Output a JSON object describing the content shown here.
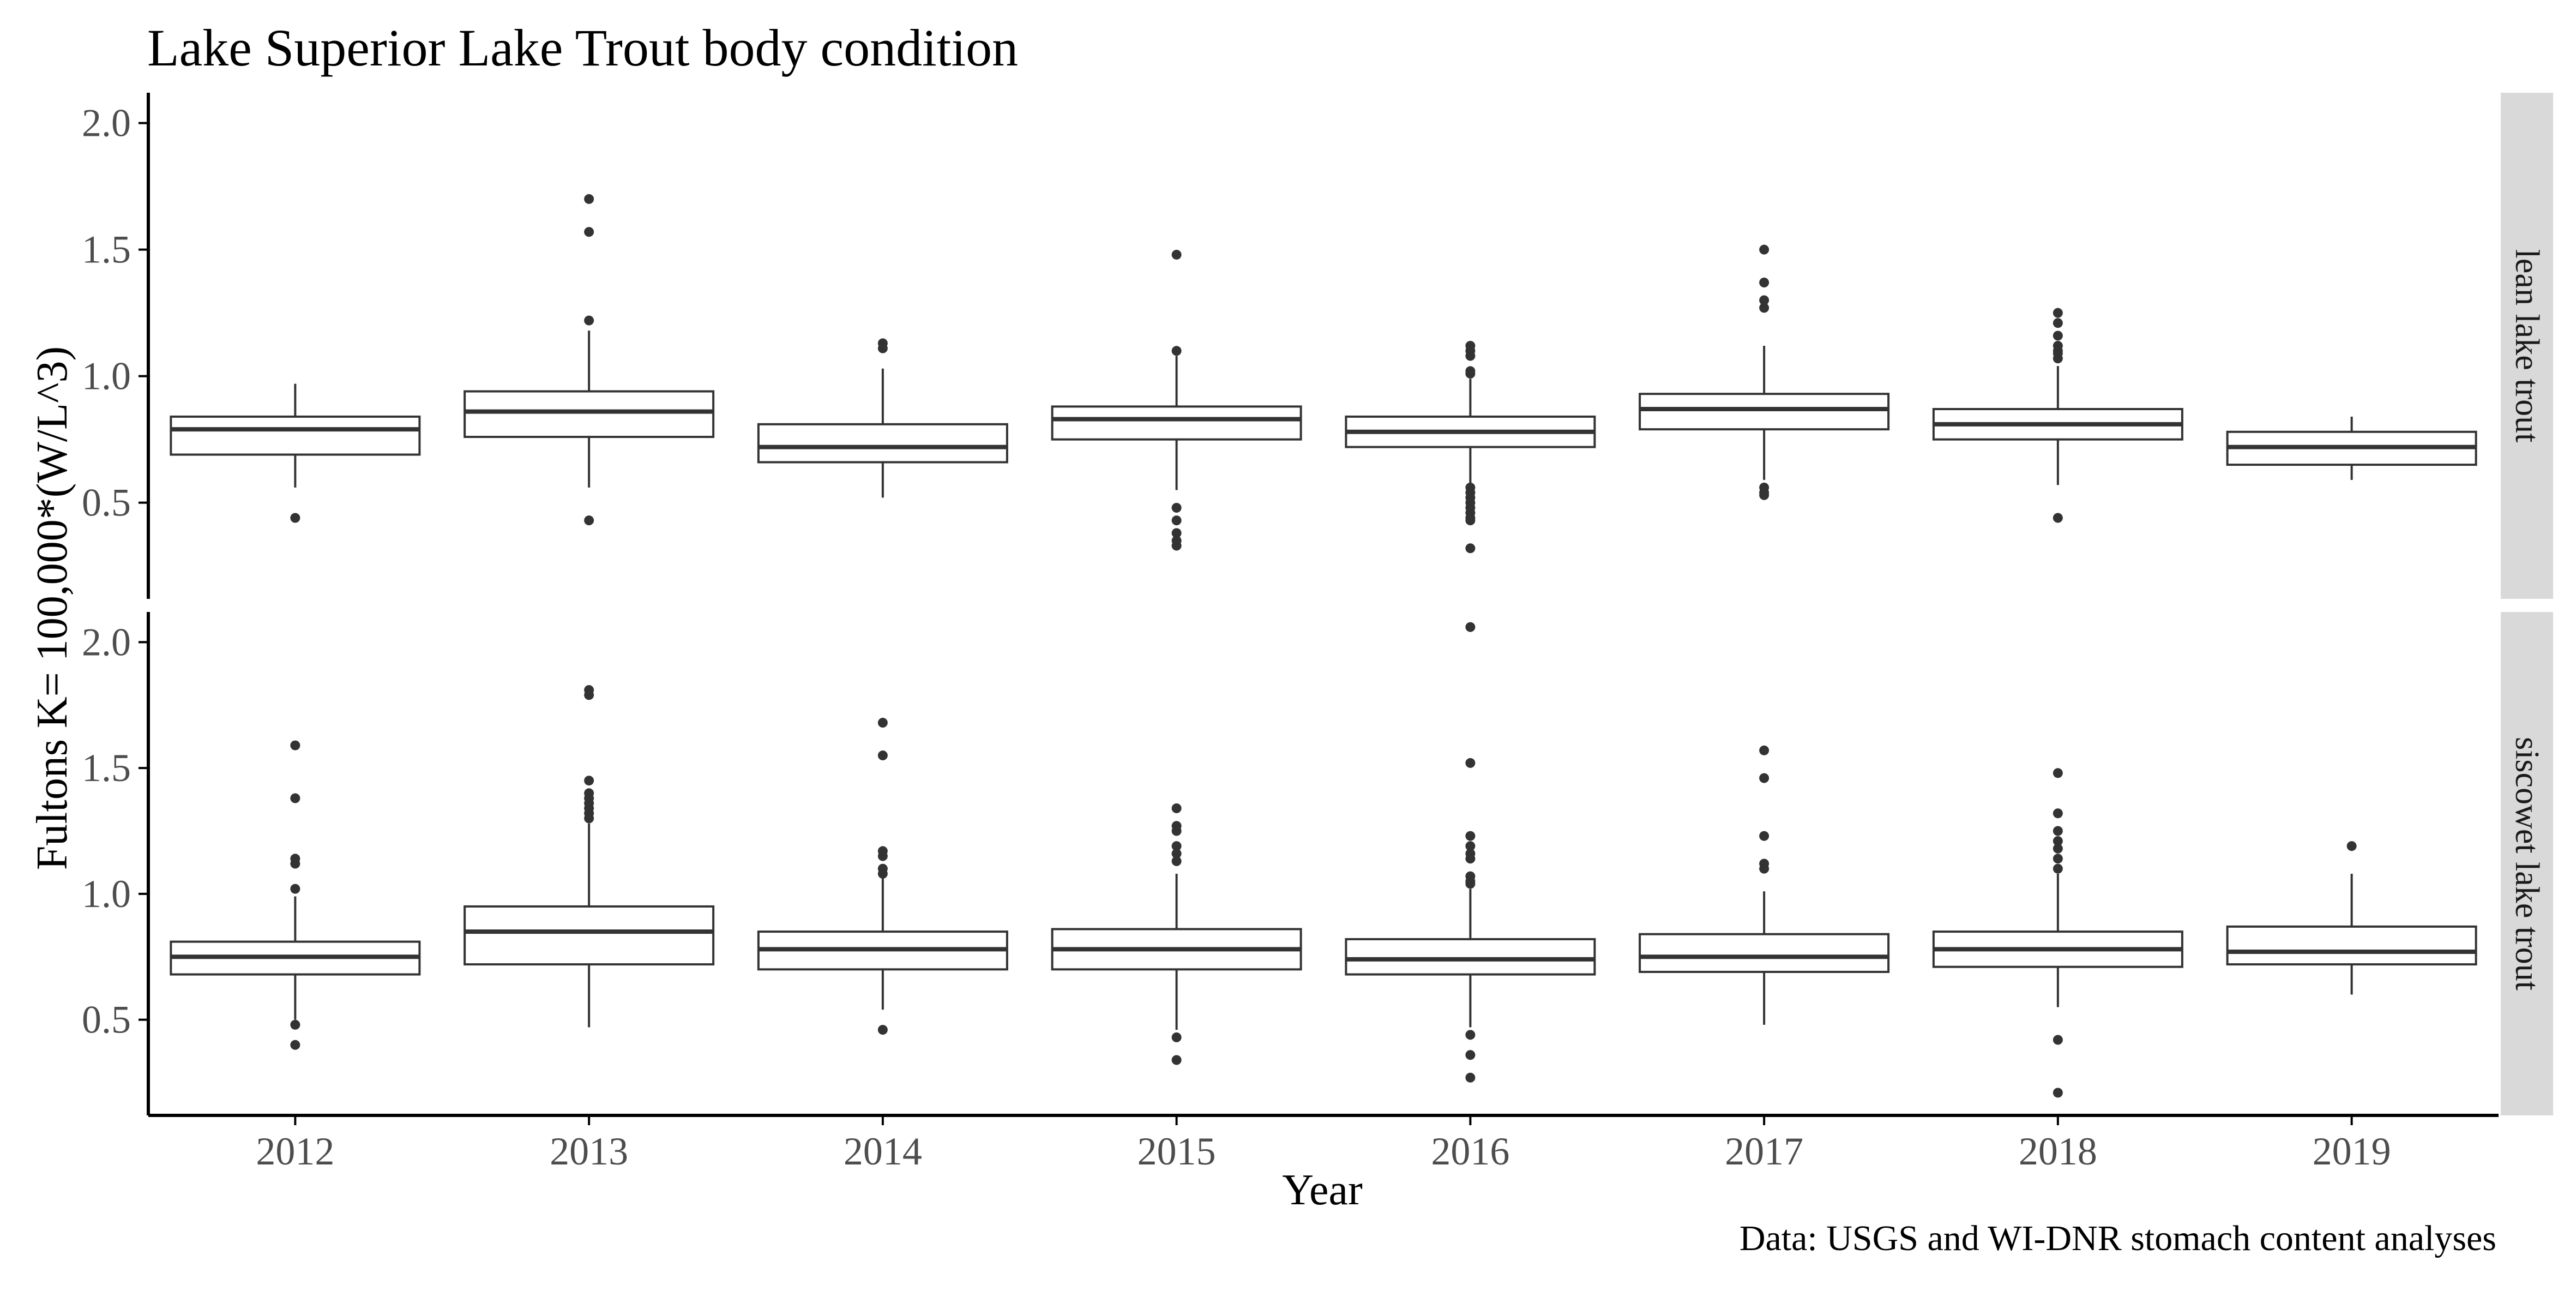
{
  "chart_data": {
    "type": "boxplot",
    "title": "Lake Superior Lake Trout body condition",
    "xlabel": "Year",
    "ylabel": "Fultons K= 100,000*(W/L^3)",
    "caption": "Data: USGS and WI-DNR stomach content analyses",
    "categories": [
      "2012",
      "2013",
      "2014",
      "2015",
      "2016",
      "2017",
      "2018",
      "2019"
    ],
    "y_ticks": [
      0.5,
      1.0,
      1.5,
      2.0
    ],
    "y_tick_labels": [
      "0.5",
      "1.0",
      "1.5",
      "2.0"
    ],
    "ylim": [
      0.12,
      2.12
    ],
    "grid": false,
    "legend": "none",
    "colors": {
      "box_fill": "#ffffff",
      "box_stroke": "#333333",
      "outlier": "#333333",
      "axis": "#000000",
      "strip_fill": "#d9d9d9",
      "tick_text": "#4d4d4d",
      "text": "#000000"
    },
    "facets": [
      {
        "label": "lean lake trout",
        "boxes": [
          {
            "x": "2012",
            "q1": 0.69,
            "median": 0.79,
            "q3": 0.84,
            "whisker_low": 0.56,
            "whisker_high": 0.97,
            "outliers": [
              0.44
            ]
          },
          {
            "x": "2013",
            "q1": 0.76,
            "median": 0.86,
            "q3": 0.94,
            "whisker_low": 0.56,
            "whisker_high": 1.18,
            "outliers": [
              1.7,
              1.57,
              1.22,
              0.43
            ]
          },
          {
            "x": "2014",
            "q1": 0.66,
            "median": 0.72,
            "q3": 0.81,
            "whisker_low": 0.52,
            "whisker_high": 1.03,
            "outliers": [
              1.13,
              1.11
            ]
          },
          {
            "x": "2015",
            "q1": 0.75,
            "median": 0.83,
            "q3": 0.88,
            "whisker_low": 0.55,
            "whisker_high": 1.08,
            "outliers": [
              1.48,
              1.1,
              0.48,
              0.43,
              0.38,
              0.35,
              0.33
            ]
          },
          {
            "x": "2016",
            "q1": 0.72,
            "median": 0.78,
            "q3": 0.84,
            "whisker_low": 0.57,
            "whisker_high": 0.99,
            "outliers": [
              1.12,
              1.1,
              1.08,
              1.02,
              1.01,
              0.56,
              0.54,
              0.52,
              0.5,
              0.48,
              0.46,
              0.44,
              0.43,
              0.32
            ]
          },
          {
            "x": "2017",
            "q1": 0.79,
            "median": 0.87,
            "q3": 0.93,
            "whisker_low": 0.59,
            "whisker_high": 1.12,
            "outliers": [
              1.5,
              1.37,
              1.3,
              1.27,
              0.56,
              0.54,
              0.53
            ]
          },
          {
            "x": "2018",
            "q1": 0.75,
            "median": 0.81,
            "q3": 0.87,
            "whisker_low": 0.57,
            "whisker_high": 1.04,
            "outliers": [
              1.25,
              1.21,
              1.16,
              1.12,
              1.1,
              1.09,
              1.07,
              0.44
            ]
          },
          {
            "x": "2019",
            "q1": 0.65,
            "median": 0.72,
            "q3": 0.78,
            "whisker_low": 0.59,
            "whisker_high": 0.84,
            "outliers": []
          }
        ]
      },
      {
        "label": "siscowet lake trout",
        "boxes": [
          {
            "x": "2012",
            "q1": 0.68,
            "median": 0.75,
            "q3": 0.81,
            "whisker_low": 0.5,
            "whisker_high": 0.99,
            "outliers": [
              1.59,
              1.38,
              1.14,
              1.12,
              1.02,
              0.48,
              0.4
            ]
          },
          {
            "x": "2013",
            "q1": 0.72,
            "median": 0.85,
            "q3": 0.95,
            "whisker_low": 0.47,
            "whisker_high": 1.28,
            "outliers": [
              1.81,
              1.79,
              1.45,
              1.4,
              1.38,
              1.36,
              1.34,
              1.32,
              1.3
            ]
          },
          {
            "x": "2014",
            "q1": 0.7,
            "median": 0.78,
            "q3": 0.85,
            "whisker_low": 0.54,
            "whisker_high": 1.07,
            "outliers": [
              1.68,
              1.55,
              1.17,
              1.15,
              1.1,
              1.08,
              0.46
            ]
          },
          {
            "x": "2015",
            "q1": 0.7,
            "median": 0.78,
            "q3": 0.86,
            "whisker_low": 0.46,
            "whisker_high": 1.08,
            "outliers": [
              1.34,
              1.27,
              1.25,
              1.19,
              1.16,
              1.13,
              0.43,
              0.34
            ]
          },
          {
            "x": "2016",
            "q1": 0.68,
            "median": 0.74,
            "q3": 0.82,
            "whisker_low": 0.47,
            "whisker_high": 1.02,
            "outliers": [
              2.06,
              1.52,
              1.23,
              1.19,
              1.16,
              1.14,
              1.07,
              1.05,
              1.04,
              0.44,
              0.36,
              0.27
            ]
          },
          {
            "x": "2017",
            "q1": 0.69,
            "median": 0.75,
            "q3": 0.84,
            "whisker_low": 0.48,
            "whisker_high": 1.01,
            "outliers": [
              1.57,
              1.46,
              1.23,
              1.12,
              1.1
            ]
          },
          {
            "x": "2018",
            "q1": 0.71,
            "median": 0.78,
            "q3": 0.85,
            "whisker_low": 0.55,
            "whisker_high": 1.08,
            "outliers": [
              1.48,
              1.32,
              1.25,
              1.21,
              1.18,
              1.14,
              1.1,
              0.42,
              0.21
            ]
          },
          {
            "x": "2019",
            "q1": 0.72,
            "median": 0.77,
            "q3": 0.87,
            "whisker_low": 0.6,
            "whisker_high": 1.08,
            "outliers": [
              1.19
            ]
          }
        ]
      }
    ]
  }
}
